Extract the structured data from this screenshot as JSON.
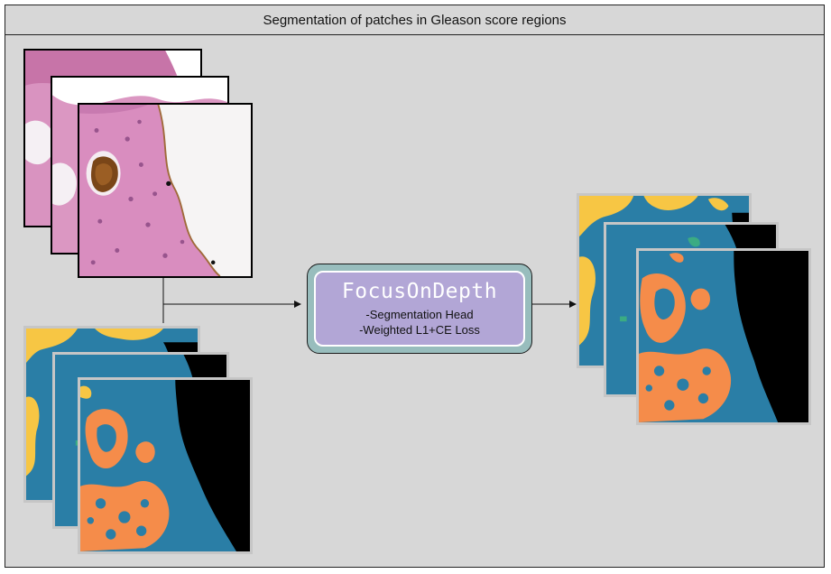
{
  "diagram": {
    "title": "Segmentation of patches in Gleason score regions",
    "model": {
      "name": "FocusOnDepth",
      "details": [
        "-Segmentation Head",
        "-Weighted L1+CE Loss"
      ]
    },
    "colors": {
      "background": "#d7d7d7",
      "stroma_blue": "#2a7ea6",
      "gleason_yellow": "#f7c644",
      "gleason_orange": "#f58c4a",
      "benign_green": "#3bab83",
      "background_black": "#000000",
      "tissue_pink": "#d88dbd",
      "model_outer": "#98bdbd",
      "model_inner": "#b2a6d6"
    },
    "icons": [
      "histology-patch-image",
      "segmentation-mask-image",
      "arrow-right-icon"
    ]
  }
}
